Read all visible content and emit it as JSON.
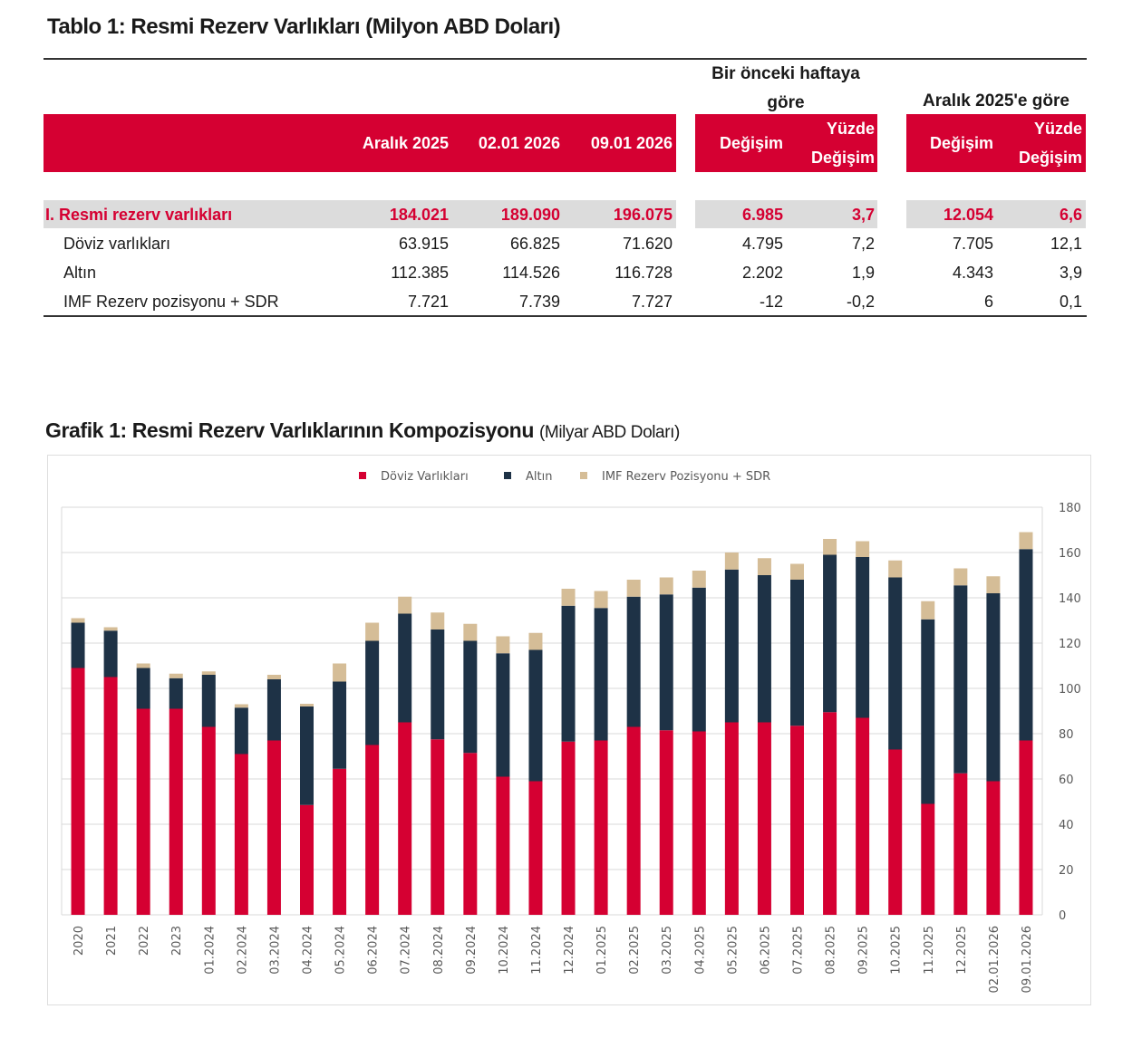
{
  "table": {
    "title": "Tablo 1: Resmi Rezerv Varlıkları (Milyon ABD Doları)",
    "group_headers": {
      "weekly": "Bir önceki haftaya göre",
      "vs_dec": "Aralık 2025'e göre"
    },
    "columns": {
      "c1": "Aralık 2025",
      "c2": "02.01 2026",
      "c3": "09.01 2026",
      "w_change": "Değişim",
      "w_pct": "Yüzde Değişim",
      "d_change": "Değişim",
      "d_pct": "Yüzde Değişim"
    },
    "rows": [
      {
        "label": "I. Resmi rezerv varlıkları",
        "c1": "184.021",
        "c2": "189.090",
        "c3": "196.075",
        "w_change": "6.985",
        "w_pct": "3,7",
        "d_change": "12.054",
        "d_pct": "6,6"
      },
      {
        "label": "Döviz varlıkları",
        "c1": "63.915",
        "c2": "66.825",
        "c3": "71.620",
        "w_change": "4.795",
        "w_pct": "7,2",
        "d_change": "7.705",
        "d_pct": "12,1"
      },
      {
        "label": "Altın",
        "c1": "112.385",
        "c2": "114.526",
        "c3": "116.728",
        "w_change": "2.202",
        "w_pct": "1,9",
        "d_change": "4.343",
        "d_pct": "3,9"
      },
      {
        "label": "IMF Rezerv pozisyonu + SDR",
        "c1": "7.721",
        "c2": "7.739",
        "c3": "7.727",
        "w_change": "-12",
        "w_pct": "-0,2",
        "d_change": "6",
        "d_pct": "0,1"
      }
    ]
  },
  "chart_data": {
    "type": "bar",
    "stacked": true,
    "title": "Grafik 1: Resmi Rezerv Varlıklarının Kompozisyonu",
    "subtitle": "(Milyar ABD Doları)",
    "xlabel": "",
    "ylabel": "",
    "ylim": [
      0,
      180
    ],
    "yticks": [
      0,
      20,
      40,
      60,
      80,
      100,
      120,
      140,
      160,
      180
    ],
    "y_axis_side": "right",
    "grid": true,
    "legend_position": "top",
    "categories": [
      "2020",
      "2021",
      "2022",
      "2023",
      "01.2024",
      "02.2024",
      "03.2024",
      "04.2024",
      "05.2024",
      "06.2024",
      "07.2024",
      "08.2024",
      "09.2024",
      "10.2024",
      "11.2024",
      "12.2024",
      "01.2025",
      "02.2025",
      "03.2025",
      "04.2025",
      "05.2025",
      "06.2025",
      "07.2025",
      "08.2025",
      "09.2025",
      "10.2025",
      "11.2025",
      "12.2025",
      "02.01.2026",
      "09.01.2026"
    ],
    "series": [
      {
        "name": "Döviz Varlıkları",
        "color": "#d50032",
        "values": [
          109,
          105,
          91,
          91,
          83,
          71,
          77,
          48.5,
          64.5,
          75,
          85,
          77.5,
          71.5,
          61,
          59,
          76.5,
          77,
          83,
          81.5,
          81,
          85,
          85,
          83.5,
          89.5,
          87,
          73,
          49,
          62.5,
          59,
          77
        ]
      },
      {
        "name": "Altın",
        "color": "#1e3246",
        "values": [
          20,
          20.5,
          18,
          13.5,
          23,
          20.5,
          27,
          43.5,
          38.5,
          46,
          48,
          48.5,
          49.5,
          54.5,
          58,
          60,
          58.5,
          57.5,
          60,
          63.5,
          67.5,
          65,
          64.5,
          69.5,
          71,
          76,
          81.5,
          83,
          83,
          84.5
        ]
      },
      {
        "name": "IMF Rezerv Pozisyonu + SDR",
        "color": "#d5bd97",
        "values": [
          2,
          1.5,
          2,
          2,
          1.5,
          1.5,
          2,
          1.2,
          8,
          8,
          7.5,
          7.5,
          7.5,
          7.5,
          7.5,
          7.5,
          7.5,
          7.5,
          7.5,
          7.5,
          7.5,
          7.5,
          7,
          7,
          7,
          7.5,
          8,
          7.5,
          7.5,
          7.5
        ]
      }
    ]
  }
}
